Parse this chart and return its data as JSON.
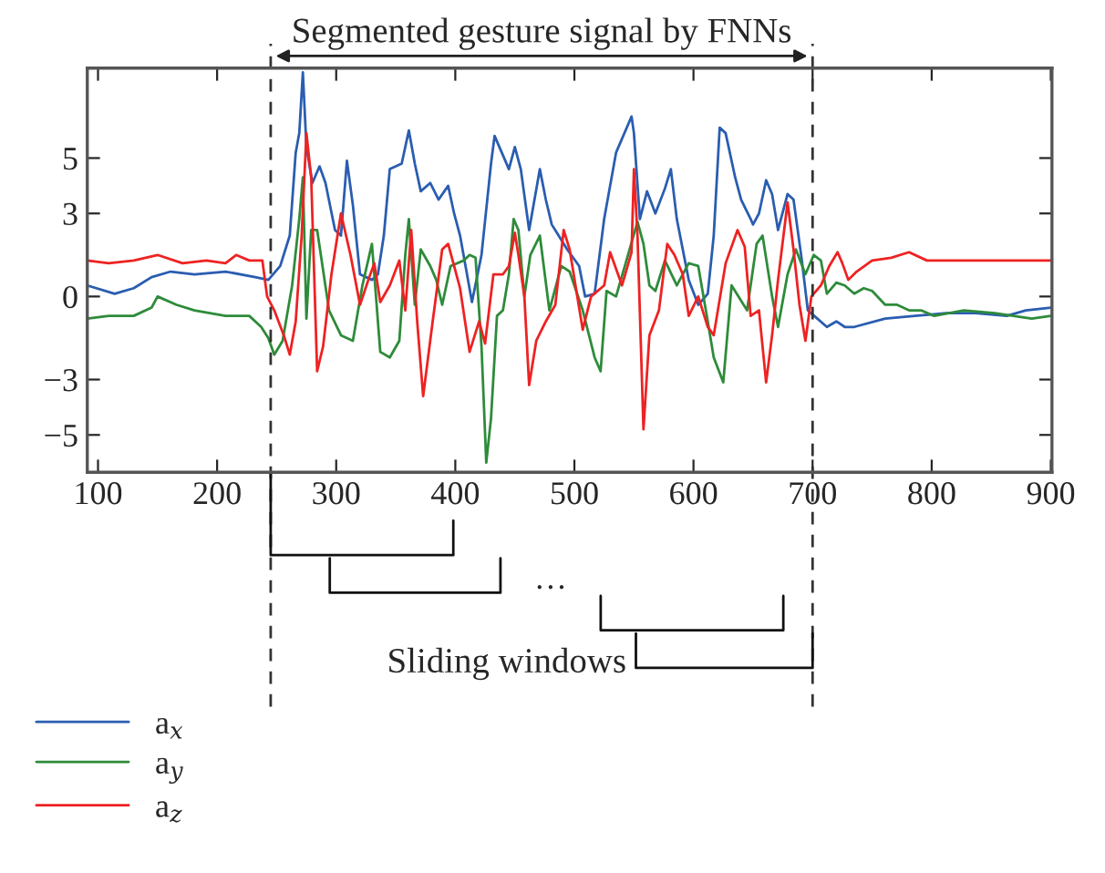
{
  "chart_data": {
    "type": "line",
    "title": "Segmented gesture signal by FNNs",
    "xlim": [
      91,
      901
    ],
    "ylim": [
      -6.35,
      8.25
    ],
    "xticks": [
      100,
      200,
      300,
      400,
      500,
      600,
      700,
      800,
      900
    ],
    "yticks": [
      {
        "value": -5,
        "label": "−5"
      },
      {
        "value": -3,
        "label": "−3"
      },
      0,
      3,
      5
    ],
    "grid": false,
    "legend": "bottom left",
    "line_style": "solid",
    "marker": "none",
    "series": [
      {
        "name": "a$_{x}$",
        "color": "#2a5db0",
        "x": [
          91,
          114,
          130,
          145,
          161,
          181,
          207,
          232,
          243,
          253,
          261,
          266,
          269,
          272,
          275,
          280,
          286,
          291,
          299,
          304,
          309,
          314,
          320,
          330,
          335,
          340,
          345,
          355,
          361,
          366,
          371,
          379,
          386,
          394,
          399,
          404,
          414,
          422,
          430,
          433,
          440,
          445,
          450,
          455,
          462,
          471,
          476,
          481,
          494,
          504,
          509,
          517,
          525,
          535,
          545,
          548,
          550,
          555,
          561,
          568,
          576,
          581,
          586,
          596,
          604,
          612,
          617,
          622,
          627,
          635,
          640,
          648,
          650,
          655,
          661,
          666,
          671,
          679,
          684,
          691,
          696,
          704,
          712,
          720,
          727,
          735,
          761,
          786,
          812,
          837,
          863,
          879,
          900
        ],
        "values": [
          0.4,
          0.1,
          0.3,
          0.7,
          0.9,
          0.8,
          0.9,
          0.7,
          0.6,
          1.1,
          2.2,
          5.2,
          5.9,
          8.1,
          5.4,
          4.1,
          4.7,
          4.1,
          2.4,
          2.2,
          4.9,
          3.3,
          0.8,
          0.6,
          0.8,
          2.2,
          4.6,
          4.8,
          6.0,
          4.8,
          3.8,
          4.1,
          3.5,
          4.0,
          3.0,
          2.2,
          -0.2,
          1.5,
          4.8,
          5.8,
          5.1,
          4.6,
          5.4,
          4.6,
          2.4,
          4.6,
          3.5,
          2.6,
          1.7,
          1.1,
          0.0,
          0.1,
          2.8,
          5.2,
          6.2,
          6.5,
          5.9,
          2.8,
          3.8,
          3.0,
          3.9,
          4.6,
          2.8,
          0.6,
          -0.3,
          0.1,
          2.2,
          6.1,
          5.9,
          4.3,
          3.5,
          2.8,
          2.6,
          3.0,
          4.2,
          3.7,
          2.4,
          3.7,
          3.5,
          1.3,
          -0.5,
          -0.8,
          -1.1,
          -0.9,
          -1.1,
          -1.1,
          -0.8,
          -0.7,
          -0.6,
          -0.6,
          -0.7,
          -0.5,
          -0.4
        ]
      },
      {
        "name": "a$_{y}$",
        "color": "#2e8b3a",
        "x": [
          91,
          109,
          130,
          145,
          150,
          166,
          181,
          207,
          227,
          237,
          243,
          248,
          255,
          263,
          269,
          272,
          275,
          279,
          284,
          294,
          304,
          314,
          322,
          330,
          337,
          345,
          353,
          358,
          361,
          366,
          371,
          379,
          384,
          389,
          396,
          407,
          412,
          417,
          422,
          426,
          430,
          435,
          440,
          445,
          449,
          453,
          458,
          463,
          471,
          479,
          489,
          496,
          507,
          517,
          522,
          527,
          535,
          545,
          553,
          558,
          563,
          568,
          576,
          586,
          596,
          604,
          612,
          617,
          625,
          632,
          645,
          653,
          658,
          666,
          671,
          679,
          686,
          694,
          701,
          707,
          712,
          720,
          727,
          735,
          743,
          750,
          761,
          771,
          781,
          791,
          802,
          827,
          853,
          884,
          900
        ],
        "values": [
          -0.8,
          -0.7,
          -0.7,
          -0.4,
          0.0,
          -0.3,
          -0.5,
          -0.7,
          -0.7,
          -1.1,
          -1.5,
          -2.1,
          -1.6,
          0.4,
          2.8,
          4.3,
          -0.8,
          2.4,
          2.4,
          -0.5,
          -1.4,
          -1.6,
          0.4,
          1.9,
          -2.0,
          -2.2,
          -1.6,
          1.5,
          2.8,
          -0.3,
          1.7,
          1.1,
          0.6,
          -0.3,
          1.1,
          1.3,
          1.5,
          1.4,
          -1.8,
          -6.0,
          -4.4,
          -0.7,
          -0.5,
          0.8,
          2.8,
          2.4,
          0.0,
          1.5,
          2.2,
          -0.5,
          1.1,
          0.9,
          -0.5,
          -2.2,
          -2.7,
          0.2,
          0.0,
          1.5,
          2.7,
          1.9,
          0.4,
          0.2,
          1.3,
          0.4,
          1.2,
          1.1,
          -0.9,
          -2.2,
          -3.1,
          0.4,
          -0.5,
          1.9,
          2.2,
          0.0,
          -1.1,
          0.8,
          1.7,
          0.8,
          1.5,
          1.3,
          0.1,
          0.5,
          0.4,
          0.1,
          0.3,
          0.2,
          -0.3,
          -0.3,
          -0.5,
          -0.5,
          -0.7,
          -0.5,
          -0.6,
          -0.8,
          -0.7
        ]
      },
      {
        "name": "a$_{z}$",
        "color": "#ee2222",
        "x": [
          91,
          109,
          130,
          150,
          171,
          191,
          207,
          216,
          227,
          238,
          242,
          248,
          256,
          261,
          266,
          271,
          275,
          279,
          284,
          289,
          296,
          304,
          312,
          320,
          327,
          332,
          337,
          345,
          353,
          358,
          363,
          368,
          373,
          381,
          389,
          394,
          399,
          404,
          412,
          420,
          425,
          432,
          440,
          445,
          450,
          453,
          458,
          462,
          468,
          476,
          484,
          491,
          496,
          507,
          514,
          525,
          530,
          540,
          548,
          550,
          553,
          558,
          563,
          571,
          578,
          584,
          591,
          596,
          604,
          612,
          617,
          627,
          637,
          643,
          648,
          655,
          661,
          666,
          671,
          679,
          684,
          689,
          694,
          699,
          707,
          714,
          721,
          725,
          730,
          737,
          750,
          766,
          781,
          796,
          812,
          837,
          863,
          889,
          900
        ],
        "values": [
          1.3,
          1.2,
          1.3,
          1.5,
          1.2,
          1.3,
          1.2,
          1.5,
          1.3,
          1.3,
          0.0,
          -0.5,
          -1.4,
          -2.1,
          -0.9,
          2.2,
          5.9,
          4.3,
          -2.7,
          -1.8,
          0.8,
          3.0,
          1.5,
          -0.3,
          0.6,
          1.2,
          -0.2,
          0.4,
          1.3,
          -0.5,
          2.4,
          -0.9,
          -3.6,
          -0.9,
          1.7,
          1.9,
          1.1,
          0.3,
          -2.0,
          -0.9,
          -1.7,
          0.8,
          0.8,
          1.1,
          2.3,
          1.5,
          0.0,
          -3.2,
          -1.6,
          -0.9,
          -0.3,
          2.4,
          1.7,
          -1.2,
          0.0,
          0.4,
          1.6,
          0.4,
          1.6,
          4.6,
          2.2,
          -4.8,
          -1.4,
          -0.5,
          1.9,
          1.5,
          0.8,
          -0.7,
          0.0,
          -1.1,
          -1.4,
          1.2,
          2.4,
          1.8,
          -0.7,
          -0.5,
          -3.1,
          -1.4,
          0.6,
          3.4,
          1.7,
          -0.3,
          -1.6,
          0.0,
          0.4,
          1.1,
          1.6,
          1.2,
          0.6,
          0.9,
          1.3,
          1.4,
          1.6,
          1.3,
          1.3,
          1.3,
          1.3,
          1.3,
          1.3
        ]
      }
    ],
    "ref_lines": [
      {
        "axis": "x",
        "value": 245,
        "line_style": "dashed",
        "color": "#333333"
      },
      {
        "axis": "x",
        "value": 700,
        "line_style": "dashed",
        "color": "#333333"
      }
    ],
    "annotations": [
      "…",
      "Sliding windows"
    ]
  }
}
